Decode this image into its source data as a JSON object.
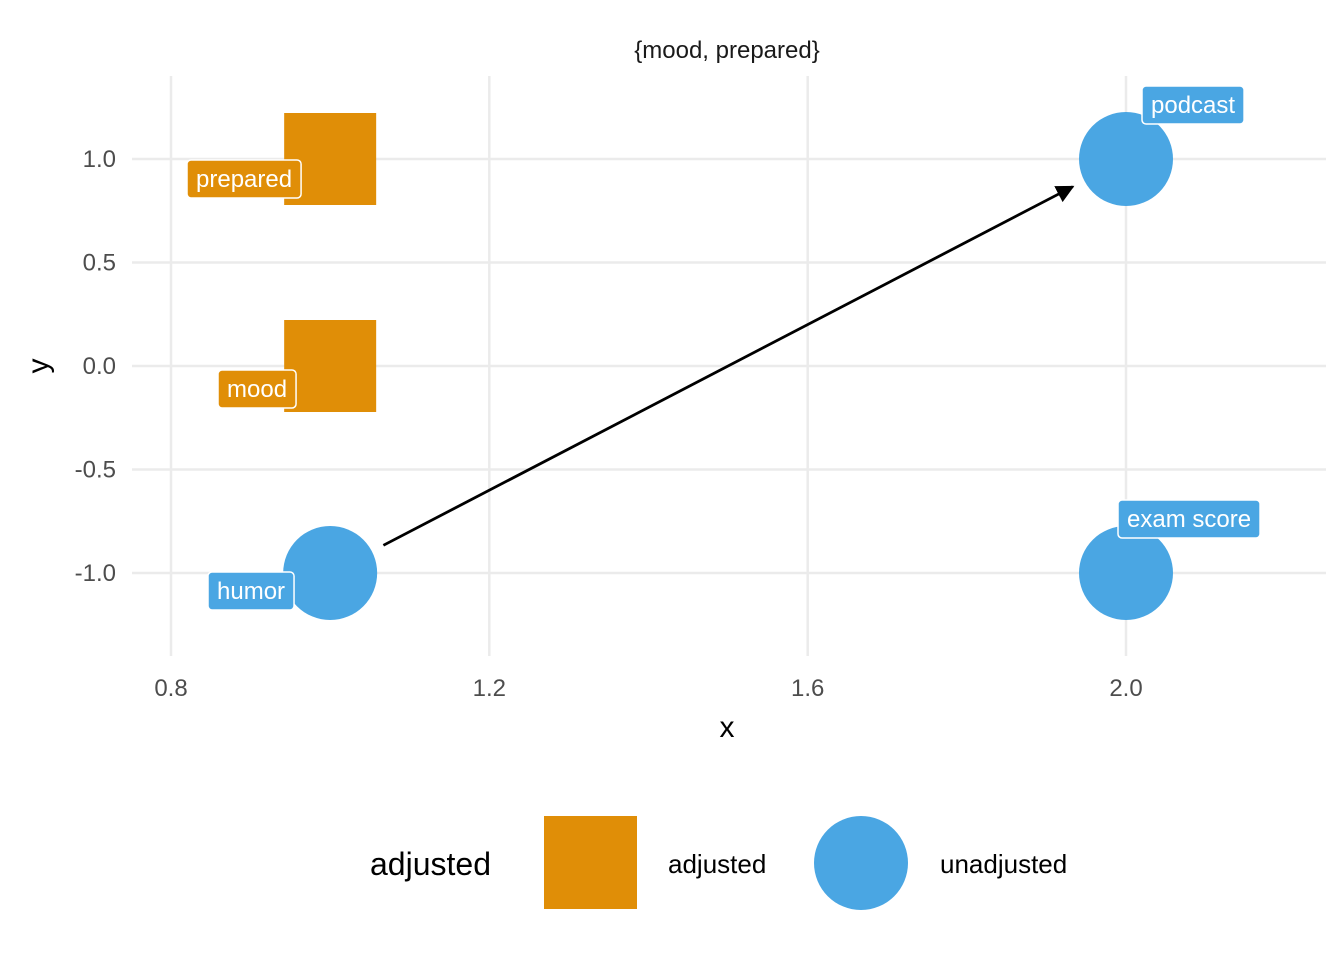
{
  "chart_data": {
    "type": "scatter",
    "title": "{mood, prepared}",
    "xlabel": "x",
    "ylabel": "y",
    "xlim": [
      0.8,
      2.25
    ],
    "ylim": [
      -1.4,
      1.4
    ],
    "x_ticks": [
      "0.8",
      "1.2",
      "1.6",
      "2.0"
    ],
    "x_tick_values": [
      0.8,
      1.2,
      1.6,
      2.0
    ],
    "y_ticks": [
      "1.0",
      "0.5",
      "0.0",
      "-0.5",
      "-1.0"
    ],
    "y_tick_values": [
      1.0,
      0.5,
      0.0,
      -0.5,
      -1.0
    ],
    "grid": true,
    "nodes": [
      {
        "name": "prepared",
        "x": 1.0,
        "y": 1.0,
        "status": "adjusted"
      },
      {
        "name": "mood",
        "x": 1.0,
        "y": 0.0,
        "status": "adjusted"
      },
      {
        "name": "humor",
        "x": 1.0,
        "y": -1.0,
        "status": "unadjusted"
      },
      {
        "name": "podcast",
        "x": 2.0,
        "y": 1.0,
        "status": "unadjusted"
      },
      {
        "name": "exam score",
        "x": 2.0,
        "y": -1.0,
        "status": "unadjusted"
      }
    ],
    "edges": [
      {
        "from": "humor",
        "to": "podcast"
      }
    ],
    "legend": {
      "title": "adjusted",
      "position": "bottom",
      "entries": [
        {
          "label": "adjusted",
          "shape": "square",
          "color": "#E08E07"
        },
        {
          "label": "unadjusted",
          "shape": "circle",
          "color": "#4AA6E3"
        }
      ]
    },
    "colors": {
      "adjusted": "#E08E07",
      "unadjusted": "#4AA6E3",
      "grid": "#EBEBEB",
      "edge": "#000000"
    }
  }
}
